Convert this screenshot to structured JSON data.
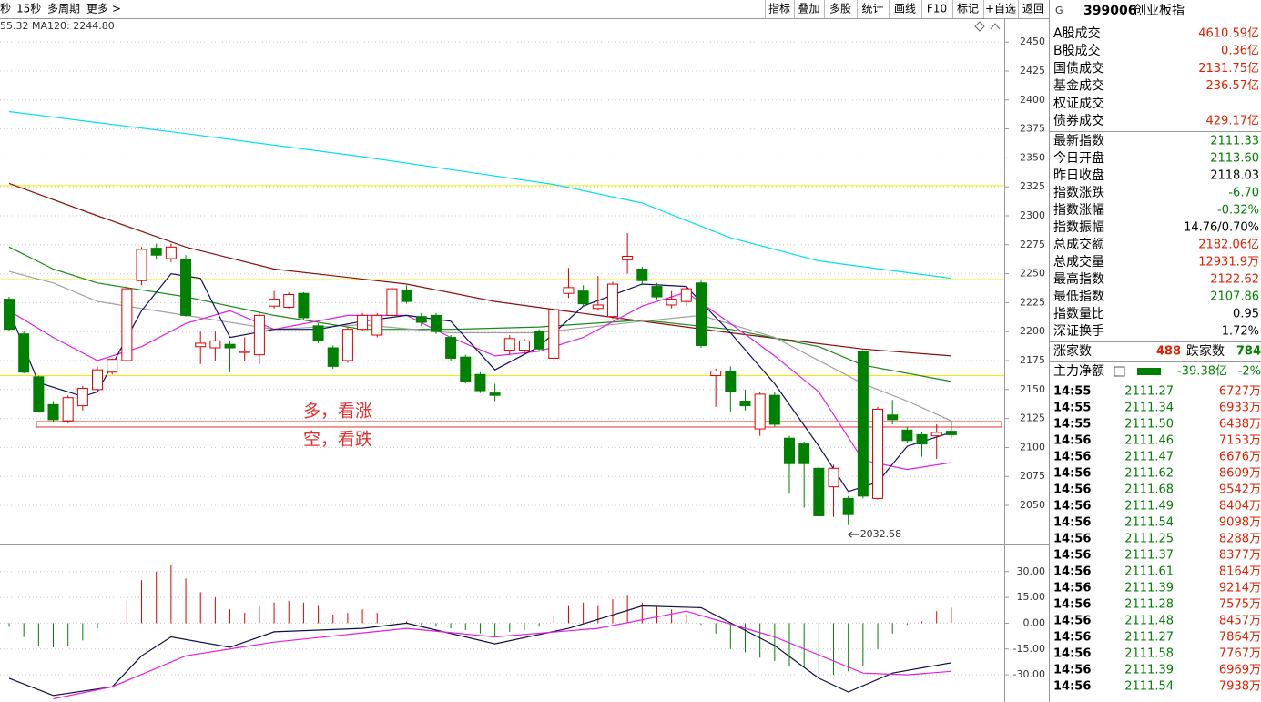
{
  "toolbar": {
    "left": [
      "秒",
      "15秒",
      "多周期",
      "更多 >"
    ],
    "buttons": [
      "指标",
      "叠加",
      "多股",
      "统计",
      "画线",
      "F10",
      "标记",
      "+自选",
      "返回"
    ]
  },
  "chart_data": [
    {
      "type": "candlestick",
      "indicator_labels": [
        {
          "text": "55.32",
          "color": "#1a9a1a"
        },
        {
          "text": "MA120: 2244.80",
          "color": "#00c8d8"
        }
      ],
      "open": [
        2228,
        2198,
        2161,
        2137,
        2123,
        2136,
        2150,
        2165,
        2175,
        2244,
        2272,
        2263,
        2262,
        2187,
        2186,
        2189,
        2182,
        2180,
        2222,
        2221,
        2233,
        2205,
        2186,
        2175,
        2202,
        2197,
        2214,
        2236,
        2213,
        2214,
        2195,
        2178,
        2163,
        2147,
        2184,
        2184,
        2200,
        2177,
        2233,
        2235,
        2220,
        2213,
        2262,
        2254,
        2239,
        2223,
        2226,
        2242,
        2162,
        2166,
        2140,
        2116,
        2145,
        2108,
        2103,
        2082,
        2066,
        2056,
        2183,
        2056,
        2128,
        2115,
        2111,
        2110,
        2114
      ],
      "high": [
        2230,
        2200,
        2162,
        2140,
        2145,
        2153,
        2170,
        2177,
        2240,
        2273,
        2276,
        2276,
        2266,
        2200,
        2200,
        2192,
        2195,
        2217,
        2235,
        2234,
        2234,
        2207,
        2188,
        2204,
        2216,
        2216,
        2238,
        2240,
        2216,
        2216,
        2197,
        2180,
        2165,
        2155,
        2197,
        2194,
        2202,
        2220,
        2255,
        2240,
        2248,
        2243,
        2285,
        2256,
        2242,
        2235,
        2240,
        2244,
        2168,
        2170,
        2150,
        2148,
        2148,
        2110,
        2105,
        2084,
        2085,
        2058,
        2184,
        2135,
        2141,
        2118,
        2113,
        2120,
        2123
      ],
      "low": [
        2200,
        2164,
        2130,
        2122,
        2121,
        2132,
        2148,
        2163,
        2173,
        2240,
        2262,
        2260,
        2213,
        2172,
        2175,
        2165,
        2175,
        2172,
        2220,
        2220,
        2210,
        2190,
        2168,
        2173,
        2200,
        2195,
        2210,
        2224,
        2205,
        2198,
        2175,
        2155,
        2147,
        2140,
        2180,
        2180,
        2183,
        2175,
        2229,
        2222,
        2218,
        2211,
        2250,
        2240,
        2228,
        2220,
        2222,
        2186,
        2135,
        2131,
        2132,
        2110,
        2118,
        2060,
        2048,
        2040,
        2040,
        2033,
        2056,
        2055,
        2120,
        2104,
        2092,
        2090,
        2108
      ],
      "close": [
        2202,
        2165,
        2131,
        2124,
        2143,
        2151,
        2167,
        2176,
        2237,
        2271,
        2266,
        2273,
        2214,
        2190,
        2192,
        2186,
        2183,
        2214,
        2228,
        2232,
        2212,
        2192,
        2170,
        2202,
        2214,
        2214,
        2237,
        2226,
        2208,
        2200,
        2177,
        2157,
        2149,
        2145,
        2194,
        2192,
        2185,
        2219,
        2238,
        2224,
        2223,
        2241,
        2265,
        2244,
        2230,
        2228,
        2237,
        2188,
        2166,
        2148,
        2136,
        2146,
        2120,
        2086,
        2086,
        2041,
        2082,
        2042,
        2058,
        2133,
        2124,
        2106,
        2103,
        2113,
        2111
      ],
      "up_color": "#e00000",
      "down_color": "#008000",
      "series": [
        {
          "color": "#00e0f0",
          "x": [
            0,
            12,
            24,
            37,
            43,
            49,
            55,
            64
          ],
          "values": [
            2390,
            2371,
            2351,
            2327,
            2311,
            2281,
            2261,
            2246
          ]
        },
        {
          "color": "#8b1010",
          "x": [
            0,
            6,
            12,
            18,
            27,
            33,
            40,
            49,
            58,
            64
          ],
          "values": [
            2328,
            2300,
            2273,
            2254,
            2241,
            2226,
            2214,
            2199,
            2185,
            2179
          ]
        },
        {
          "color": "#1a8a1a",
          "x": [
            0,
            3,
            6,
            12,
            18,
            24,
            30,
            36,
            43,
            49,
            55,
            58,
            64
          ],
          "values": [
            2273,
            2254,
            2242,
            2230,
            2214,
            2202,
            2202,
            2204,
            2210,
            2202,
            2187,
            2171,
            2157
          ]
        },
        {
          "color": "#a0a0a0",
          "x": [
            0,
            3,
            6,
            12,
            18,
            24,
            30,
            36,
            43,
            47,
            52,
            58,
            61,
            64
          ],
          "values": [
            2252,
            2242,
            2226,
            2214,
            2202,
            2206,
            2199,
            2199,
            2209,
            2214,
            2195,
            2155,
            2140,
            2123
          ]
        },
        {
          "color": "#e020e0",
          "x": [
            0,
            3,
            6,
            9,
            12,
            15,
            18,
            23,
            27,
            30,
            33,
            36,
            39,
            43,
            46,
            49,
            52,
            55,
            58,
            61,
            64
          ],
          "values": [
            2218,
            2195,
            2175,
            2187,
            2207,
            2218,
            2202,
            2214,
            2214,
            2195,
            2179,
            2183,
            2195,
            2222,
            2234,
            2207,
            2179,
            2148,
            2089,
            2081,
            2087
          ]
        },
        {
          "color": "#101060",
          "x": [
            0,
            2,
            5,
            6,
            9,
            11,
            13,
            15,
            18,
            21,
            24,
            27,
            30,
            33,
            36,
            39,
            43,
            46,
            49,
            52,
            55,
            57,
            59,
            61,
            64
          ],
          "values": [
            2218,
            2156,
            2144,
            2148,
            2218,
            2250,
            2246,
            2195,
            2202,
            2202,
            2209,
            2214,
            2209,
            2167,
            2187,
            2222,
            2241,
            2239,
            2199,
            2155,
            2101,
            2062,
            2070,
            2101,
            2113
          ]
        }
      ],
      "hlines": [
        {
          "value": 2326,
          "color": "#f0f000"
        },
        {
          "value": 2245,
          "color": "#f0f000"
        },
        {
          "value": 2162,
          "color": "#f0f000"
        },
        {
          "value": 2120,
          "color": "#e03030"
        }
      ],
      "annotations": [
        "多，看涨",
        "空，看跌"
      ],
      "low_value": 2032.58,
      "ylim": [
        2017,
        2469
      ],
      "yticks": [
        2050,
        2075,
        2100,
        2125,
        2150,
        2175,
        2200,
        2225,
        2250,
        2275,
        2300,
        2325,
        2350,
        2375,
        2400,
        2425,
        2450
      ],
      "grid": true
    },
    {
      "type": "macd",
      "values": [
        -2,
        -8,
        -13,
        -14,
        -13,
        -10,
        -3,
        0,
        13,
        25,
        30,
        34,
        26,
        18,
        15,
        8,
        6,
        10,
        12,
        13,
        12,
        10,
        5,
        6,
        8,
        6,
        3,
        1,
        -1,
        -2,
        -3,
        -4,
        -6,
        -8,
        -5,
        -4,
        -2,
        4,
        10,
        12,
        10,
        14,
        16,
        12,
        10,
        8,
        5,
        -1,
        -6,
        -15,
        -17,
        -20,
        -22,
        -25,
        -26,
        -30,
        -30,
        -28,
        -25,
        -15,
        -6,
        -1,
        1,
        7,
        9
      ],
      "up_color": "#e00000",
      "down_color": "#008000",
      "series": [
        {
          "color": "#101040",
          "x": [
            0,
            3,
            7,
            9,
            11,
            15,
            18,
            24,
            27,
            33,
            38,
            43,
            47,
            52,
            55,
            57,
            60,
            64
          ],
          "values": [
            -32,
            -42,
            -37,
            -19,
            -8,
            -14,
            -5,
            -3,
            0,
            -12,
            -3,
            10,
            9,
            -13,
            -32,
            -40,
            -29,
            -23
          ]
        },
        {
          "color": "#e020e0",
          "x": [
            3,
            7,
            12,
            18,
            27,
            33,
            40,
            46,
            52,
            58,
            61,
            64
          ],
          "values": [
            -44,
            -37,
            -19,
            -11,
            -3,
            -8,
            -3,
            7,
            -8,
            -29,
            -30,
            -28
          ]
        }
      ],
      "ylim": [
        -45.3,
        44.7
      ],
      "yticks": [
        {
          "value": -30,
          "label": "-30.00"
        },
        {
          "value": -15,
          "label": "-15.00"
        },
        {
          "value": 0,
          "label": "0.00"
        },
        {
          "value": 15,
          "label": "15.00"
        },
        {
          "value": 30,
          "label": "30.00"
        }
      ],
      "grid": true
    }
  ],
  "side_panel": {
    "header": {
      "badge": "G",
      "code": "399006",
      "name": "创业板指"
    },
    "turnover": [
      {
        "label": "A股成交",
        "value": "4610.59亿",
        "color": "#e02000"
      },
      {
        "label": "B股成交",
        "value": "0.36亿",
        "color": "#e02000"
      },
      {
        "label": "国债成交",
        "value": "2131.75亿",
        "color": "#e02000"
      },
      {
        "label": "基金成交",
        "value": "236.57亿",
        "color": "#e02000"
      },
      {
        "label": "权证成交"
      },
      {
        "label": "债券成交",
        "value": "429.17亿",
        "color": "#e02000"
      }
    ],
    "stats": [
      {
        "label": "最新指数",
        "value": "2111.33",
        "color": "#008000"
      },
      {
        "label": "今日开盘",
        "value": "2113.60",
        "color": "#008000"
      },
      {
        "label": "昨日收盘",
        "value": "2118.03",
        "color": "#000000"
      },
      {
        "label": "指数涨跌",
        "value": "-6.70",
        "color": "#008000"
      },
      {
        "label": "指数涨幅",
        "value": "-0.32%",
        "color": "#008000"
      },
      {
        "label": "指数振幅",
        "value": "14.76/0.70%",
        "color": "#000000"
      },
      {
        "label": "总成交额",
        "value": "2182.06亿",
        "color": "#e02000"
      },
      {
        "label": "总成交量",
        "value": "12931.9万",
        "color": "#e02000"
      },
      {
        "label": "最高指数",
        "value": "2122.62",
        "color": "#e02000"
      },
      {
        "label": "最低指数",
        "value": "2107.86",
        "color": "#008000"
      },
      {
        "label": "指数量比",
        "value": "0.95",
        "color": "#000000"
      },
      {
        "label": "深证换手",
        "value": "1.72%",
        "color": "#000000"
      }
    ],
    "breadth": {
      "up_label": "涨家数",
      "up": "488",
      "down_label": "跌家数",
      "down": "784"
    },
    "main_flow": {
      "label": "主力净额",
      "value": "-39.38亿",
      "pct": "-2%"
    },
    "trades": [
      [
        "14:55",
        "2111.27",
        "6727万"
      ],
      [
        "14:55",
        "2111.34",
        "6933万"
      ],
      [
        "14:55",
        "2111.50",
        "6438万"
      ],
      [
        "14:56",
        "2111.46",
        "7153万"
      ],
      [
        "14:56",
        "2111.47",
        "6676万"
      ],
      [
        "14:56",
        "2111.62",
        "8609万"
      ],
      [
        "14:56",
        "2111.68",
        "9542万"
      ],
      [
        "14:56",
        "2111.49",
        "8404万"
      ],
      [
        "14:56",
        "2111.54",
        "9098万"
      ],
      [
        "14:56",
        "2111.25",
        "8288万"
      ],
      [
        "14:56",
        "2111.37",
        "8377万"
      ],
      [
        "14:56",
        "2111.61",
        "8164万"
      ],
      [
        "14:56",
        "2111.39",
        "9214万"
      ],
      [
        "14:56",
        "2111.28",
        "7575万"
      ],
      [
        "14:56",
        "2111.48",
        "8457万"
      ],
      [
        "14:56",
        "2111.27",
        "7864万"
      ],
      [
        "14:56",
        "2111.58",
        "7767万"
      ],
      [
        "14:56",
        "2111.39",
        "6969万"
      ],
      [
        "14:56",
        "2111.54",
        "7938万"
      ]
    ]
  }
}
